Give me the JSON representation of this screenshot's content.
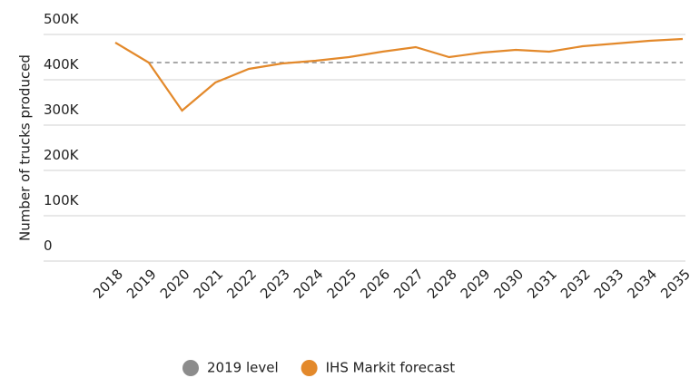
{
  "chart_data": {
    "type": "line",
    "y_label": "Number of trucks produced",
    "categories": [
      "2018",
      "2019",
      "2020",
      "2021",
      "2022",
      "2023",
      "2024",
      "2025",
      "2026",
      "2027",
      "2028",
      "2029",
      "2030",
      "2031",
      "2032",
      "2033",
      "2034",
      "2035"
    ],
    "series": [
      {
        "name": "2019 level",
        "color": "#8c8c8c",
        "dashed": true,
        "values": [
          null,
          438000,
          438000,
          438000,
          438000,
          438000,
          438000,
          438000,
          438000,
          438000,
          438000,
          438000,
          438000,
          438000,
          438000,
          438000,
          438000,
          438000
        ]
      },
      {
        "name": "IHS Markit forecast",
        "color": "#e3892b",
        "dashed": false,
        "values": [
          482000,
          438000,
          332000,
          394000,
          424000,
          436000,
          442000,
          450000,
          462000,
          472000,
          450000,
          460000,
          466000,
          462000,
          474000,
          480000,
          486000,
          490000
        ]
      }
    ],
    "ylim": [
      0,
      500000
    ],
    "yticks": [
      0,
      {
        "value": 100000,
        "label": "100K"
      },
      {
        "value": 200000,
        "label": "200K"
      },
      {
        "value": 300000,
        "label": "300K"
      },
      {
        "value": 400000,
        "label": "400K"
      },
      {
        "value": 500000,
        "label": "500K"
      }
    ],
    "grid": true
  }
}
